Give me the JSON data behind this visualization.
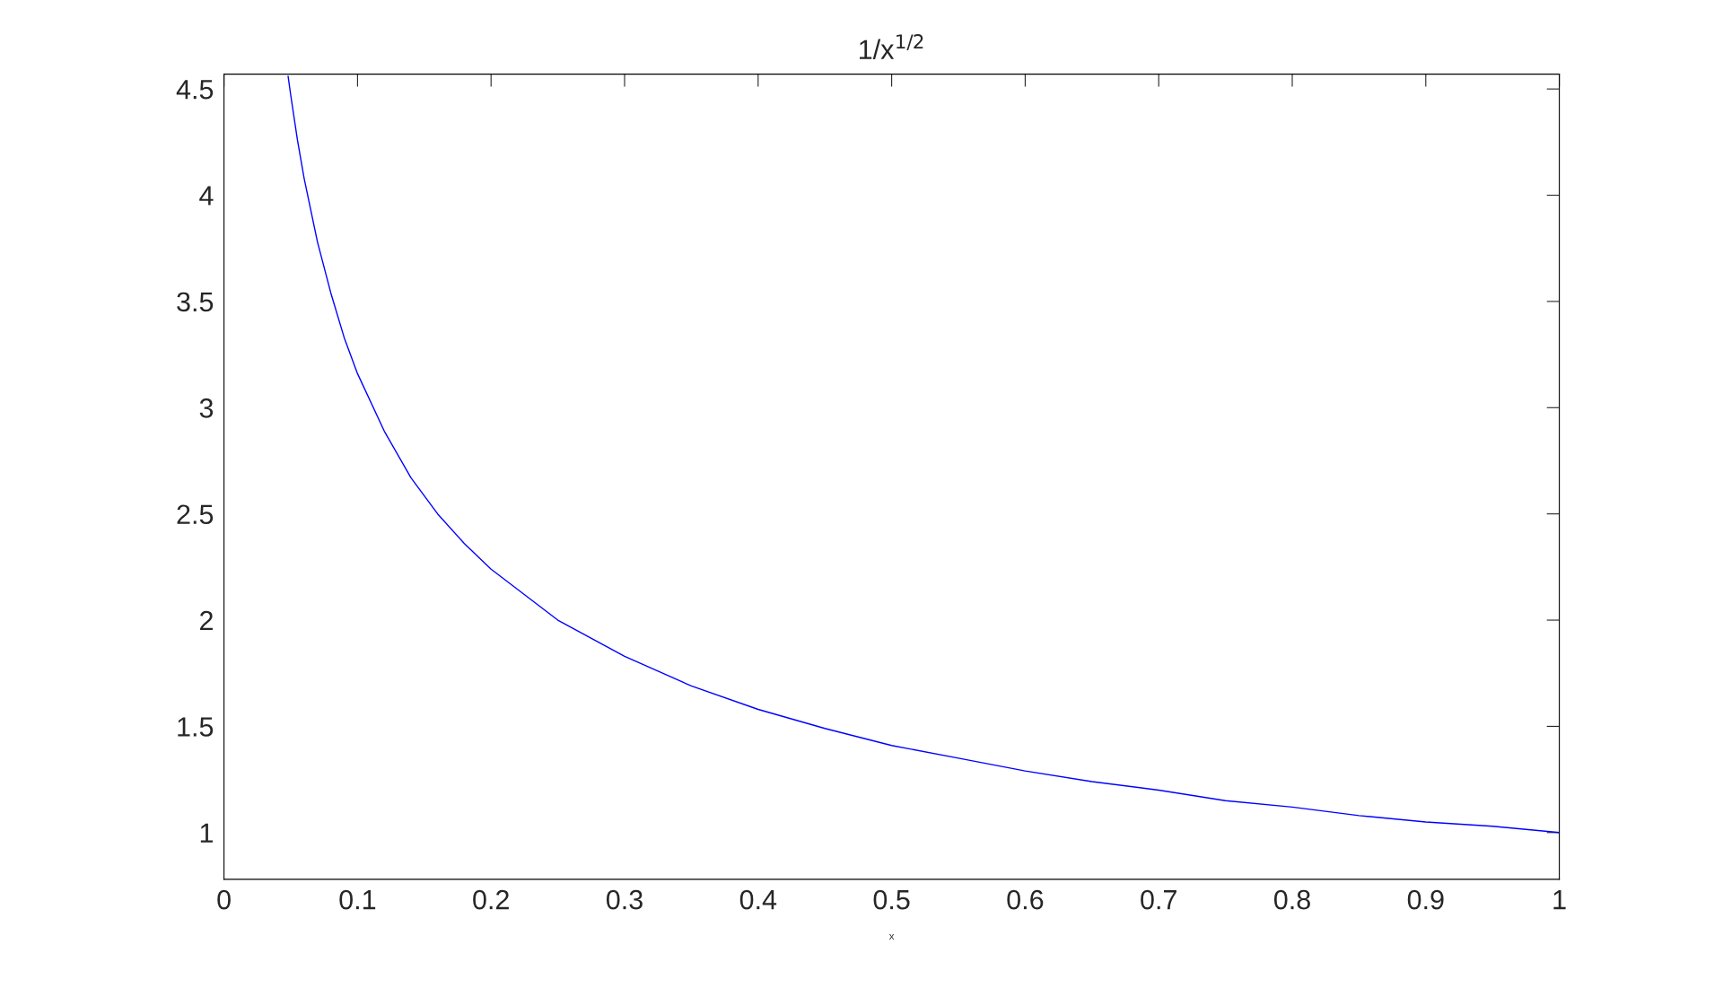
{
  "chart_data": {
    "type": "line",
    "title": "1/x$^{1/2}$",
    "xlabel": "x",
    "x": [
      0.048,
      0.05,
      0.055,
      0.06,
      0.07,
      0.08,
      0.09,
      0.1,
      0.12,
      0.14,
      0.16,
      0.18,
      0.2,
      0.25,
      0.3,
      0.35,
      0.4,
      0.45,
      0.5,
      0.55,
      0.6,
      0.65,
      0.7,
      0.75,
      0.8,
      0.85,
      0.9,
      0.95,
      1.0
    ],
    "series": [
      {
        "color": "#0000ff",
        "values": [
          4.56,
          4.47,
          4.26,
          4.08,
          3.78,
          3.54,
          3.33,
          3.16,
          2.89,
          2.67,
          2.5,
          2.36,
          2.24,
          2.0,
          1.83,
          1.69,
          1.58,
          1.49,
          1.41,
          1.35,
          1.29,
          1.24,
          1.2,
          1.15,
          1.12,
          1.08,
          1.05,
          1.03,
          1.0
        ]
      }
    ],
    "xlim": [
      0,
      1
    ],
    "ylim": [
      0.78,
      4.57
    ],
    "xticks": [
      0,
      0.1,
      0.2,
      0.3,
      0.4,
      0.5,
      0.6,
      0.7,
      0.8,
      0.9,
      1
    ],
    "yticks": [
      1,
      1.5,
      2,
      2.5,
      3,
      3.5,
      4,
      4.5
    ],
    "grid": false
  }
}
